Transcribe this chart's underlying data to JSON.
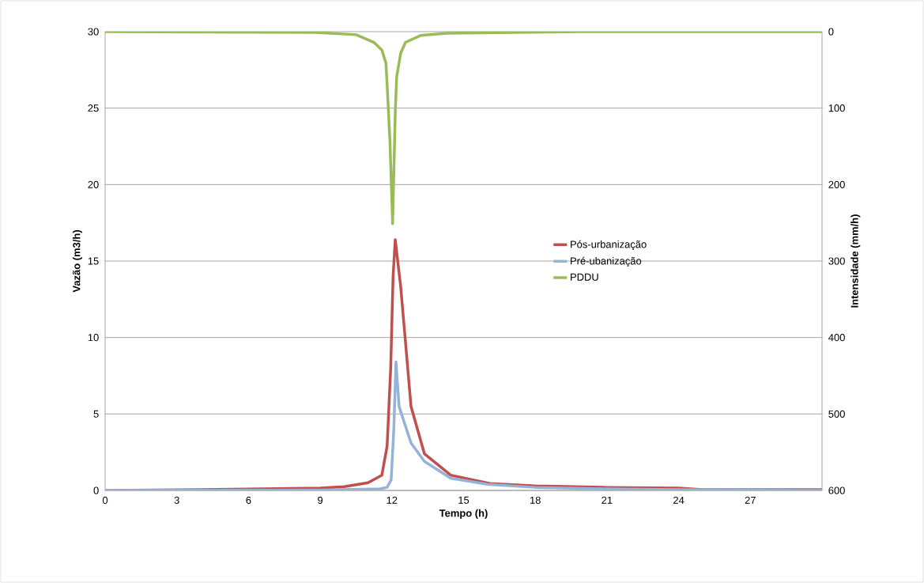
{
  "chart_data": {
    "type": "line",
    "xlabel": "Tempo (h)",
    "ylabel": "Vazão (m3/h)",
    "y2label": "Intensidade (mm/h)",
    "xlim": [
      0,
      30
    ],
    "xticks": [
      0,
      3,
      6,
      9,
      12,
      15,
      18,
      21,
      24,
      27
    ],
    "ylim": [
      0,
      30
    ],
    "yticks": [
      0,
      5,
      10,
      15,
      20,
      25,
      30
    ],
    "y2lim": [
      600,
      0
    ],
    "y2ticks": [
      0,
      100,
      200,
      300,
      400,
      500,
      600
    ],
    "grid": "y",
    "legend": "right",
    "marker": "none",
    "line_style": "solid",
    "series": [
      {
        "name": "Pós-urbanização",
        "color": "#c0504d",
        "x": [
          0,
          4,
          9,
          10,
          11,
          11.58,
          11.8,
          11.95,
          12.05,
          12.14,
          12.37,
          12.8,
          13.36,
          14.46,
          16.1,
          18,
          21,
          24,
          25,
          30
        ],
        "values": [
          0,
          0.05,
          0.15,
          0.25,
          0.5,
          1.0,
          2.9,
          8,
          14,
          16.4,
          13.3,
          5.5,
          2.4,
          1.0,
          0.45,
          0.3,
          0.2,
          0.15,
          0.05,
          0.05
        ]
      },
      {
        "name": "Pré-ubanização",
        "color": "#95b3d7",
        "x": [
          0,
          9,
          11.5,
          11.8,
          11.97,
          12.08,
          12.17,
          12.3,
          12.8,
          13.36,
          14.46,
          16,
          18,
          21,
          24,
          30
        ],
        "values": [
          0,
          0.02,
          0.1,
          0.2,
          0.7,
          4,
          8.4,
          5.5,
          3.1,
          1.9,
          0.8,
          0.4,
          0.2,
          0.1,
          0.05,
          0
        ]
      },
      {
        "name": "PDDU",
        "color": "#9bbb59",
        "axis": "y2",
        "x": [
          0,
          8.8,
          10.5,
          11.25,
          11.58,
          11.75,
          11.8,
          11.92,
          12.03,
          12.14,
          12.2,
          12.37,
          12.57,
          13.2,
          14.3,
          20,
          30
        ],
        "values": [
          0,
          1,
          4,
          14,
          24,
          41,
          69,
          145,
          251,
          107,
          59,
          28,
          14,
          5,
          2,
          0,
          0
        ]
      }
    ]
  }
}
